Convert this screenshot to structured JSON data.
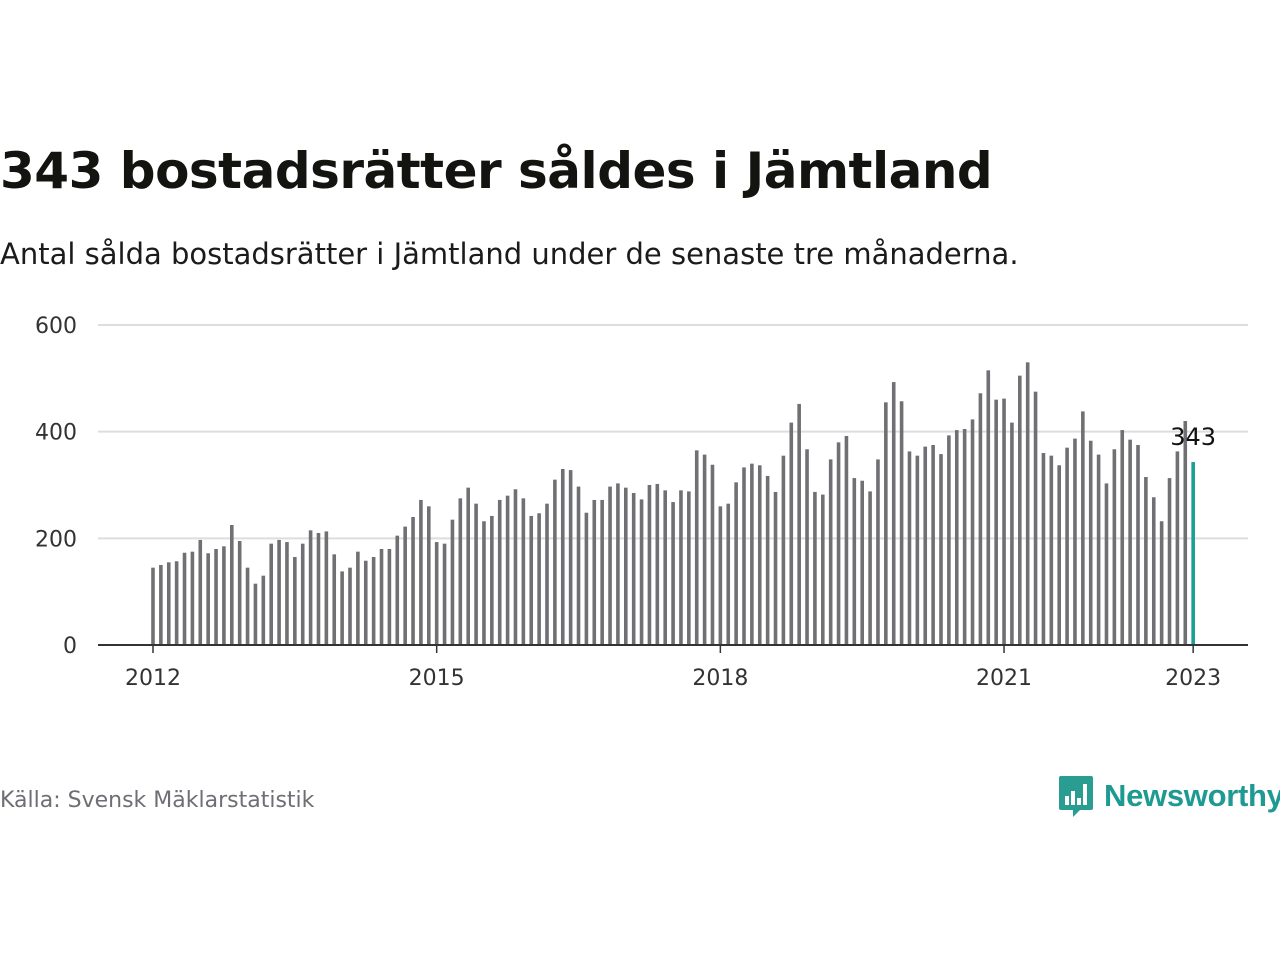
{
  "title": "343 bostadsrätter såldes i Jämtland",
  "subtitle": "Antal sålda bostadsrätter i Jämtland under de senaste tre månaderna.",
  "source": "Källa: Svensk Mäklarstatistik",
  "brand": {
    "name": "Newsworthy",
    "icon": "newsworthy-logo-icon",
    "color": "#2a9d93"
  },
  "colors": {
    "bar": "#707074",
    "highlight": "#1a9e96",
    "grid": "#dddddd",
    "axis": "#333333"
  },
  "chart_data": {
    "type": "bar",
    "title": "343 bostadsrätter såldes i Jämtland",
    "xlabel": "",
    "ylabel": "",
    "ylim": [
      0,
      600
    ],
    "yticks": [
      "0",
      "200",
      "400",
      "600"
    ],
    "xticks": [
      "2012",
      "2015",
      "2018",
      "2021",
      "2023"
    ],
    "start": "2012-01",
    "end": "2023-01",
    "grid": true,
    "annotation": {
      "text": "343",
      "target": "2023-01"
    },
    "highlight": "2023-01",
    "values": [
      145,
      150,
      155,
      157,
      173,
      175,
      197,
      172,
      180,
      185,
      225,
      195,
      145,
      115,
      130,
      190,
      197,
      193,
      165,
      190,
      215,
      210,
      213,
      170,
      138,
      145,
      175,
      158,
      165,
      180,
      180,
      205,
      222,
      240,
      272,
      260,
      193,
      190,
      235,
      275,
      295,
      265,
      232,
      242,
      272,
      280,
      292,
      275,
      242,
      247,
      265,
      310,
      330,
      328,
      297,
      248,
      272,
      272,
      297,
      303,
      295,
      285,
      273,
      300,
      302,
      290,
      268,
      290,
      288,
      365,
      357,
      338,
      260,
      265,
      305,
      333,
      340,
      337,
      317,
      287,
      355,
      417,
      452,
      367,
      287,
      282,
      348,
      380,
      392,
      313,
      308,
      288,
      348,
      455,
      493,
      457,
      363,
      355,
      372,
      375,
      358,
      393,
      403,
      405,
      423,
      472,
      515,
      460,
      462,
      417,
      505,
      530,
      475,
      360,
      355,
      337,
      370,
      387,
      438,
      383,
      357,
      303,
      367,
      403,
      385,
      375,
      315,
      277,
      232,
      313,
      363,
      420,
      343
    ]
  }
}
